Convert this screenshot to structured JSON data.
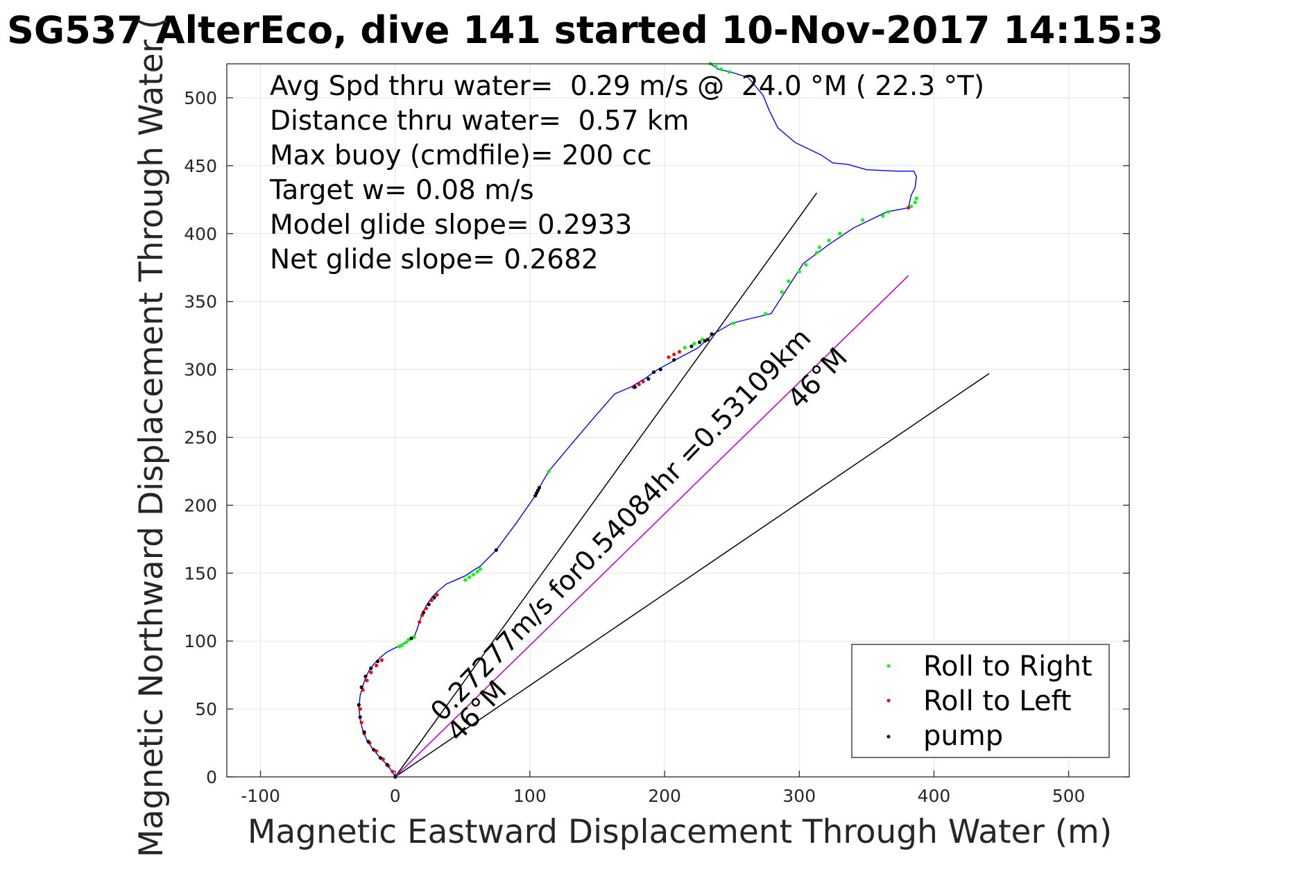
{
  "chart_data": {
    "type": "line",
    "title": "SG537 AlterEco, dive 141 started 10-Nov-2017 14:15:3",
    "xlabel": "Magnetic Eastward Displacement Through Water (m)",
    "ylabel": "Magnetic Northward Displacement Through Water (",
    "xlim": [
      -125,
      545
    ],
    "ylim": [
      0,
      525
    ],
    "xticks": [
      -100,
      0,
      100,
      200,
      300,
      400,
      500
    ],
    "yticks": [
      0,
      50,
      100,
      150,
      200,
      250,
      300,
      350,
      400,
      450,
      500
    ],
    "grid": true,
    "info_lines": [
      "Avg Spd thru water=  0.29 m/s @  24.0 °M ( 22.3 °T)",
      "Distance thru water=  0.57 km",
      "Max buoy (cmdfile)= 200 cc",
      "Target w= 0.08 m/s",
      "Model glide slope= 0.2933",
      "Net glide slope= 0.2682"
    ],
    "annotations": [
      {
        "text": "0.27277m/s for0.54084hr =0.53109km",
        "x": 35,
        "y": 40,
        "rotation_deg": 46
      },
      {
        "text": "46°M",
        "x": 47,
        "y": 25,
        "rotation_deg": 46
      },
      {
        "text": "46°M",
        "x": 300,
        "y": 270,
        "rotation_deg": 46
      }
    ],
    "legend": {
      "position": "bottom-right",
      "entries": [
        {
          "label": "Roll to Right",
          "color": "#00ff00"
        },
        {
          "label": "Roll to Left",
          "color": "#ff0000"
        },
        {
          "label": "pump",
          "color": "#000000"
        }
      ]
    },
    "colors": {
      "track": "#0000ff",
      "net_line": "#cc00cc",
      "reference": "#000000"
    },
    "reference_lines": [
      {
        "name": "",
        "x": [
          0,
          313
        ],
        "y": [
          0,
          430
        ]
      },
      {
        "name": "",
        "x": [
          0,
          441
        ],
        "y": [
          0,
          297
        ]
      }
    ],
    "series": [
      {
        "name": "",
        "color": "#0000ff",
        "x": [
          0,
          -3,
          -7,
          -12,
          -17,
          -21,
          -24,
          -26,
          -27,
          -26,
          -24,
          -22,
          -19,
          -15,
          -11,
          -6,
          0,
          6,
          11,
          14,
          16,
          18,
          20,
          23,
          27,
          32,
          38,
          45,
          52,
          58,
          63,
          75,
          90,
          104,
          107,
          114,
          130,
          148,
          163,
          175,
          185,
          195,
          208,
          225,
          236,
          250,
          262,
          279,
          290,
          303,
          322,
          340,
          365,
          381,
          383,
          386,
          387,
          385,
          372,
          350,
          336,
          325,
          316,
          297,
          284,
          280,
          278,
          273,
          262,
          249,
          240,
          234
        ],
        "y": [
          0,
          5,
          10,
          15,
          21,
          27,
          34,
          42,
          51,
          60,
          67,
          73,
          79,
          84,
          88,
          92,
          95,
          98,
          101,
          103,
          108,
          114,
          120,
          126,
          132,
          137,
          142,
          145,
          148,
          152,
          155,
          167,
          187,
          207,
          213,
          225,
          244,
          265,
          282,
          287,
          293,
          300,
          307,
          316,
          326,
          334,
          337,
          341,
          358,
          378,
          392,
          404,
          416,
          419,
          428,
          434,
          442,
          446,
          446,
          447,
          451,
          452,
          458,
          467,
          478,
          486,
          490,
          502,
          515,
          519,
          521,
          525
        ]
      },
      {
        "name": "",
        "color": "#cc00cc",
        "x": [
          0,
          381
        ],
        "y": [
          0,
          369
        ]
      }
    ],
    "markers": [
      {
        "name": "Roll to Right",
        "color": "#00ff00",
        "x": [
          3,
          5,
          8,
          10,
          12,
          14,
          52,
          55,
          58,
          61,
          63,
          114,
          215,
          222,
          228,
          251,
          275,
          287,
          292,
          300,
          305,
          313,
          315,
          322,
          330,
          347,
          362,
          366,
          383,
          386,
          387,
          234,
          238,
          242,
          248
        ],
        "y": [
          96,
          97,
          99,
          101,
          102,
          103,
          145,
          147,
          149,
          151,
          153,
          225,
          316,
          319,
          322,
          334,
          341,
          357,
          365,
          372,
          377,
          386,
          390,
          395,
          400,
          410,
          413,
          416,
          420,
          423,
          426,
          525,
          523,
          521,
          519
        ]
      },
      {
        "name": "Roll to Left",
        "color": "#ff0000",
        "x": [
          -2,
          -5,
          -9,
          -14,
          -19,
          -23,
          -25,
          -26,
          -24,
          -21,
          -18,
          -14,
          -10,
          18,
          20,
          23,
          27,
          31,
          177,
          181,
          184,
          203,
          207,
          211,
          381
        ],
        "y": [
          4,
          8,
          13,
          19,
          25,
          32,
          40,
          50,
          64,
          71,
          77,
          82,
          86,
          114,
          119,
          124,
          130,
          134,
          287,
          289,
          291,
          309,
          311,
          313,
          419
        ],
        "note": "sampled markers"
      },
      {
        "name": "pump",
        "color": "#000000",
        "x": [
          0,
          -6,
          -11,
          -16,
          -20,
          -23,
          -26,
          -27,
          -25,
          -22,
          -18,
          -13,
          12,
          21,
          25,
          29,
          75,
          104,
          105,
          106,
          107,
          178,
          188,
          192,
          197,
          207,
          220,
          226,
          230,
          232,
          235
        ],
        "y": [
          0,
          9,
          14,
          20,
          26,
          33,
          44,
          53,
          66,
          74,
          80,
          85,
          102,
          121,
          127,
          132,
          167,
          207,
          209,
          211,
          213,
          287,
          293,
          298,
          300,
          307,
          317,
          320,
          321,
          322,
          326
        ]
      }
    ]
  }
}
